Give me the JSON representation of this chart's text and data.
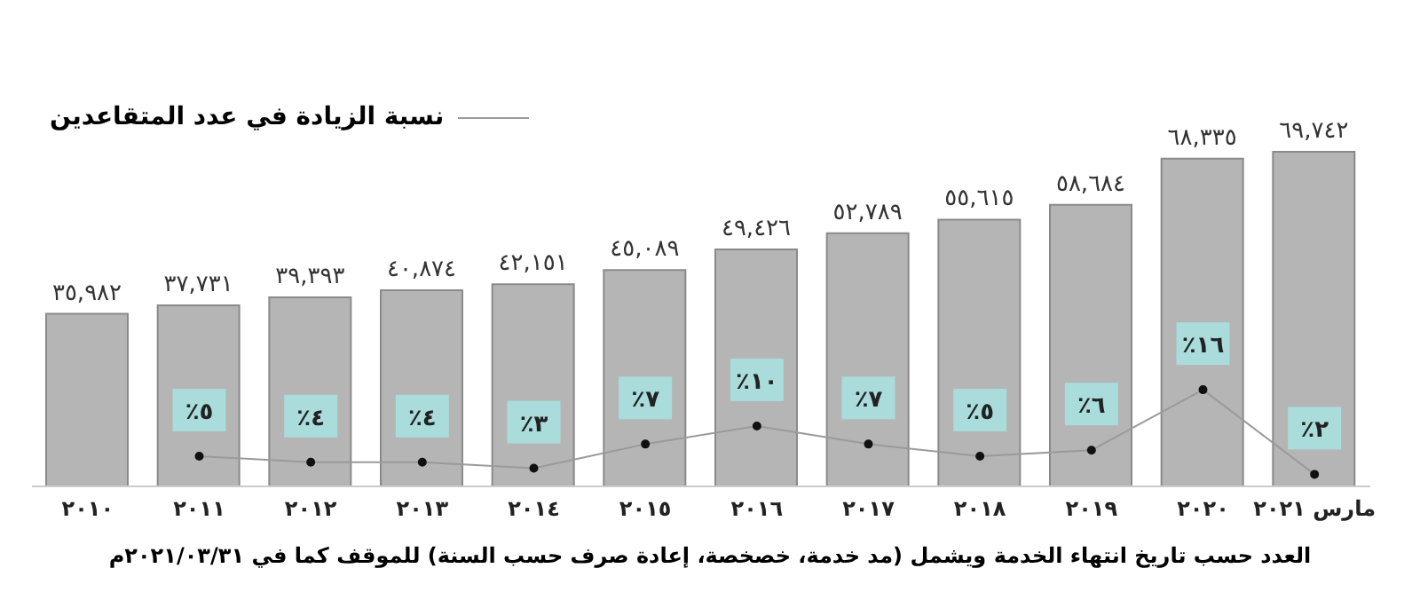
{
  "chart_data": {
    "type": "bar",
    "categories": [
      "٢٠١٠",
      "٢٠١١",
      "٢٠١٢",
      "٢٠١٣",
      "٢٠١٤",
      "٢٠١٥",
      "٢٠١٦",
      "٢٠١٧",
      "٢٠١٨",
      "٢٠١٩",
      "٢٠٢٠",
      "مارس ٢٠٢١"
    ],
    "series": [
      {
        "color": "#b5b5b5",
        "values": [
          35982,
          37731,
          39393,
          40874,
          42151,
          45089,
          49426,
          52789,
          55615,
          58684,
          68335,
          69742
        ],
        "value_labels": [
          "٣٥,٩٨٢",
          "٣٧,٧٣١",
          "٣٩,٣٩٣",
          "٤٠,٨٧٤",
          "٤٢,١٥١",
          "٤٥,٠٨٩",
          "٤٩,٤٢٦",
          "٥٢,٧٨٩",
          "٥٥,٦١٥",
          "٥٨,٦٨٤",
          "٦٨,٣٣٥",
          "٦٩,٧٤٢"
        ]
      },
      {
        "type": "line",
        "axis": "y2",
        "name": "نسبة الزيادة في عدد المتقاعدين",
        "color": "#9a9a9a",
        "values": [
          null,
          5,
          4,
          4,
          3,
          7,
          10,
          7,
          5,
          6,
          16,
          2
        ],
        "value_labels": [
          null,
          "٪٥",
          "٪٤",
          "٪٤",
          "٪٣",
          "٪٧",
          "٪١٠",
          "٪٧",
          "٪٥",
          "٪٦",
          "٪١٦",
          "٪٢"
        ]
      }
    ],
    "tick_labels": "x",
    "legend": "top left",
    "marker": "circle",
    "grid": false,
    "annotations": [
      "العدد حسب تاريخ انتهاء الخدمة ويشمل (مد خدمة، خصخصة، إعادة صرف حسب السنة) للموقف كما في ٢٠٢١/٠٣/٣١م"
    ]
  }
}
